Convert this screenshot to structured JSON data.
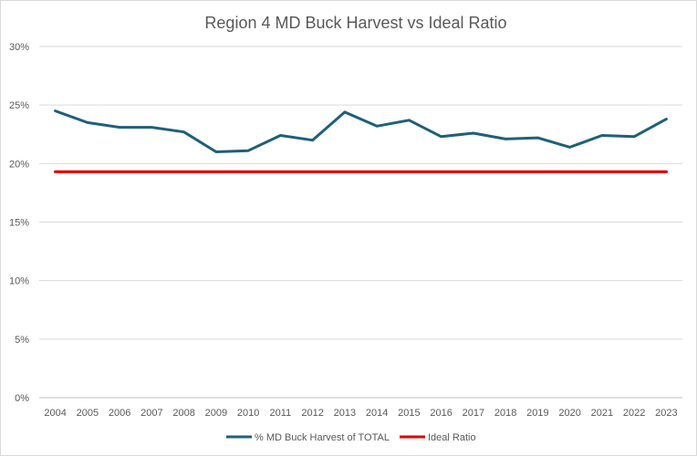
{
  "chart_data": {
    "type": "line",
    "title": "Region 4 MD Buck Harvest vs Ideal Ratio",
    "xlabel": "",
    "ylabel": "",
    "ylim": [
      0,
      0.3
    ],
    "y_ticks": [
      0,
      0.05,
      0.1,
      0.15,
      0.2,
      0.25,
      0.3
    ],
    "y_tick_labels": [
      "0%",
      "5%",
      "10%",
      "15%",
      "20%",
      "25%",
      "30%"
    ],
    "categories": [
      "2004",
      "2005",
      "2006",
      "2007",
      "2008",
      "2009",
      "2010",
      "2011",
      "2012",
      "2013",
      "2014",
      "2015",
      "2016",
      "2017",
      "2018",
      "2019",
      "2020",
      "2021",
      "2022",
      "2023"
    ],
    "series": [
      {
        "name": "% MD Buck Harvest of TOTAL",
        "color": "#1f5f7a",
        "values": [
          0.245,
          0.235,
          0.231,
          0.231,
          0.227,
          0.21,
          0.211,
          0.224,
          0.22,
          0.244,
          0.232,
          0.237,
          0.223,
          0.226,
          0.221,
          0.222,
          0.214,
          0.224,
          0.223,
          0.238
        ]
      },
      {
        "name": "Ideal Ratio",
        "color": "#e00000",
        "values": [
          0.193,
          0.193,
          0.193,
          0.193,
          0.193,
          0.193,
          0.193,
          0.193,
          0.193,
          0.193,
          0.193,
          0.193,
          0.193,
          0.193,
          0.193,
          0.193,
          0.193,
          0.193,
          0.193,
          0.193
        ]
      }
    ],
    "grid": true,
    "legend_position": "bottom"
  }
}
